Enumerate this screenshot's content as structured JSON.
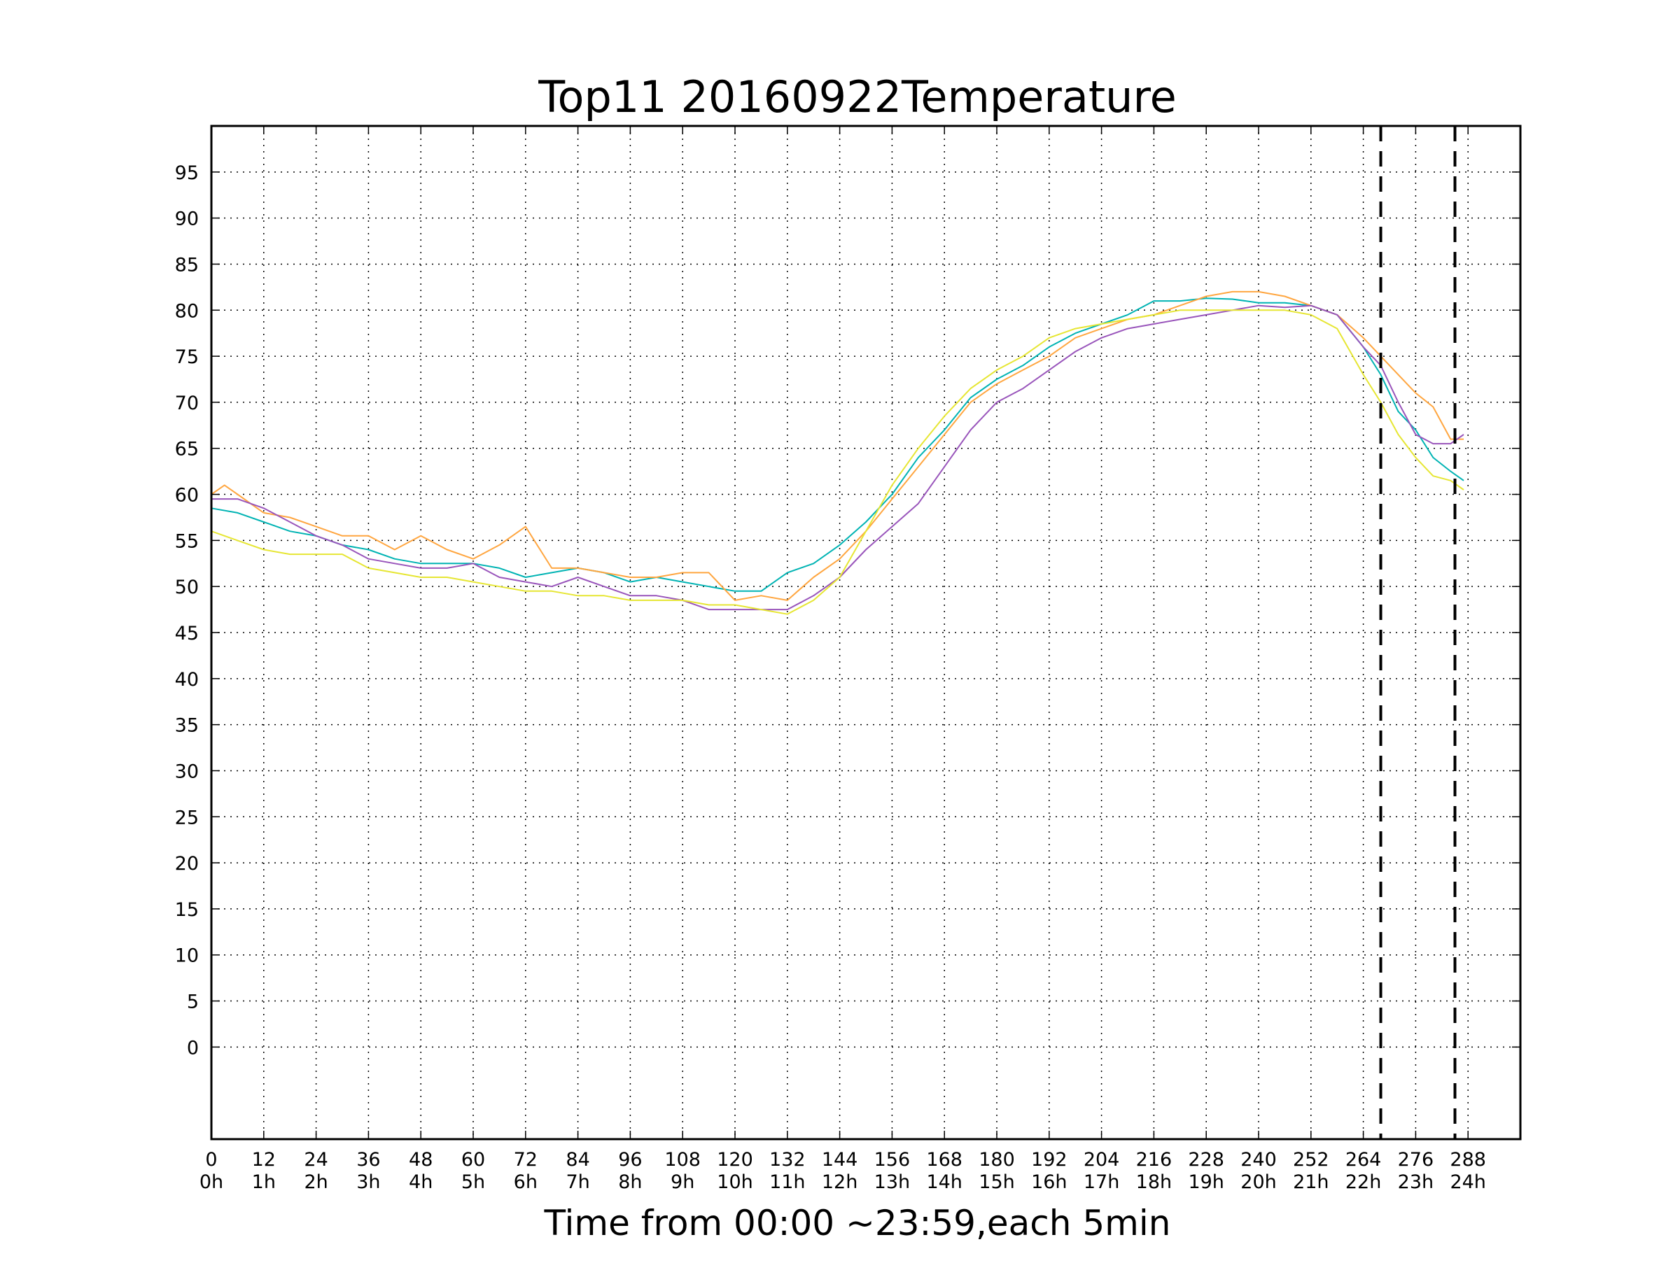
{
  "chart_data": {
    "type": "line",
    "title": "Top11 20160922Temperature",
    "xlabel": "Time from 00:00 ~23:59,each 5min",
    "ylabel": "",
    "xlim": [
      0,
      300
    ],
    "ylim": [
      -10,
      100
    ],
    "grid": true,
    "legend": "none",
    "x_ticks": [
      0,
      12,
      24,
      36,
      48,
      60,
      72,
      84,
      96,
      108,
      120,
      132,
      144,
      156,
      168,
      180,
      192,
      204,
      216,
      228,
      240,
      252,
      264,
      276,
      288
    ],
    "x_tick_labels": [
      "0",
      "12",
      "24",
      "36",
      "48",
      "60",
      "72",
      "84",
      "96",
      "108",
      "120",
      "132",
      "144",
      "156",
      "168",
      "180",
      "192",
      "204",
      "216",
      "228",
      "240",
      "252",
      "264",
      "276",
      "288"
    ],
    "x_tick_hour_labels": [
      "0h",
      "1h",
      "2h",
      "3h",
      "4h",
      "5h",
      "6h",
      "7h",
      "8h",
      "9h",
      "10h",
      "11h",
      "12h",
      "13h",
      "14h",
      "15h",
      "16h",
      "17h",
      "18h",
      "19h",
      "20h",
      "21h",
      "22h",
      "23h",
      "24h"
    ],
    "y_ticks": [
      0,
      5,
      10,
      15,
      20,
      25,
      30,
      35,
      40,
      45,
      50,
      55,
      60,
      65,
      70,
      75,
      80,
      85,
      90,
      95
    ],
    "y_tick_labels": [
      "0",
      "5",
      "10",
      "15",
      "20",
      "25",
      "30",
      "35",
      "40",
      "45",
      "50",
      "55",
      "60",
      "65",
      "70",
      "75",
      "80",
      "85",
      "90",
      "95"
    ],
    "vlines": [
      {
        "x": 268,
        "style": "dashed",
        "color": "#000000"
      },
      {
        "x": 285,
        "style": "dashed",
        "color": "#000000"
      }
    ],
    "series": [
      {
        "color": "#00b3b3",
        "points": [
          [
            0,
            58.5
          ],
          [
            6,
            58
          ],
          [
            12,
            57
          ],
          [
            18,
            56
          ],
          [
            24,
            55.5
          ],
          [
            30,
            54.5
          ],
          [
            36,
            54
          ],
          [
            42,
            53
          ],
          [
            48,
            52.5
          ],
          [
            54,
            52.5
          ],
          [
            60,
            52.5
          ],
          [
            66,
            52
          ],
          [
            72,
            51
          ],
          [
            78,
            51.5
          ],
          [
            84,
            52
          ],
          [
            90,
            51.5
          ],
          [
            96,
            50.5
          ],
          [
            102,
            51
          ],
          [
            108,
            50.5
          ],
          [
            114,
            50
          ],
          [
            120,
            49.5
          ],
          [
            126,
            49.5
          ],
          [
            132,
            51.5
          ],
          [
            138,
            52.5
          ],
          [
            144,
            54.5
          ],
          [
            150,
            57
          ],
          [
            156,
            60
          ],
          [
            162,
            64
          ],
          [
            168,
            67
          ],
          [
            174,
            70.5
          ],
          [
            180,
            72.5
          ],
          [
            186,
            74
          ],
          [
            192,
            76
          ],
          [
            198,
            77.5
          ],
          [
            204,
            78.5
          ],
          [
            210,
            79.5
          ],
          [
            216,
            81
          ],
          [
            222,
            81
          ],
          [
            228,
            81.3
          ],
          [
            234,
            81.2
          ],
          [
            240,
            80.8
          ],
          [
            246,
            80.8
          ],
          [
            252,
            80.5
          ],
          [
            258,
            79.5
          ],
          [
            264,
            76
          ],
          [
            268,
            73
          ],
          [
            272,
            69
          ],
          [
            276,
            67
          ],
          [
            280,
            64
          ],
          [
            284,
            62.5
          ],
          [
            287,
            61.5
          ]
        ]
      },
      {
        "color": "#ffa640",
        "points": [
          [
            0,
            60
          ],
          [
            3,
            61
          ],
          [
            6,
            60
          ],
          [
            12,
            58
          ],
          [
            18,
            57.5
          ],
          [
            24,
            56.5
          ],
          [
            30,
            55.5
          ],
          [
            36,
            55.5
          ],
          [
            42,
            54
          ],
          [
            48,
            55.5
          ],
          [
            54,
            54
          ],
          [
            60,
            53
          ],
          [
            66,
            54.5
          ],
          [
            72,
            56.5
          ],
          [
            78,
            52
          ],
          [
            84,
            52
          ],
          [
            90,
            51.5
          ],
          [
            96,
            51
          ],
          [
            102,
            51
          ],
          [
            108,
            51.5
          ],
          [
            114,
            51.5
          ],
          [
            120,
            48.5
          ],
          [
            126,
            49
          ],
          [
            132,
            48.5
          ],
          [
            138,
            51
          ],
          [
            144,
            53
          ],
          [
            150,
            56
          ],
          [
            156,
            59.5
          ],
          [
            162,
            63
          ],
          [
            168,
            66.5
          ],
          [
            174,
            70
          ],
          [
            180,
            72
          ],
          [
            186,
            73.5
          ],
          [
            192,
            75
          ],
          [
            198,
            77
          ],
          [
            204,
            78
          ],
          [
            210,
            79
          ],
          [
            216,
            79.5
          ],
          [
            222,
            80.5
          ],
          [
            228,
            81.5
          ],
          [
            234,
            82
          ],
          [
            240,
            82
          ],
          [
            246,
            81.5
          ],
          [
            252,
            80.5
          ],
          [
            258,
            79.5
          ],
          [
            264,
            77
          ],
          [
            268,
            75
          ],
          [
            272,
            73
          ],
          [
            276,
            71
          ],
          [
            280,
            69.5
          ],
          [
            284,
            66
          ],
          [
            287,
            66
          ]
        ]
      },
      {
        "color": "#9955bb",
        "points": [
          [
            0,
            59.5
          ],
          [
            6,
            59.5
          ],
          [
            12,
            58.5
          ],
          [
            18,
            57
          ],
          [
            24,
            55.5
          ],
          [
            30,
            54.5
          ],
          [
            36,
            53
          ],
          [
            42,
            52.5
          ],
          [
            48,
            52
          ],
          [
            54,
            52
          ],
          [
            60,
            52.5
          ],
          [
            66,
            51
          ],
          [
            72,
            50.5
          ],
          [
            78,
            50
          ],
          [
            84,
            51
          ],
          [
            90,
            50
          ],
          [
            96,
            49
          ],
          [
            102,
            49
          ],
          [
            108,
            48.5
          ],
          [
            114,
            47.5
          ],
          [
            120,
            47.5
          ],
          [
            126,
            47.5
          ],
          [
            132,
            47.5
          ],
          [
            138,
            49
          ],
          [
            144,
            51
          ],
          [
            150,
            54
          ],
          [
            156,
            56.5
          ],
          [
            162,
            59
          ],
          [
            168,
            63
          ],
          [
            174,
            67
          ],
          [
            180,
            70
          ],
          [
            186,
            71.5
          ],
          [
            192,
            73.5
          ],
          [
            198,
            75.5
          ],
          [
            204,
            77
          ],
          [
            210,
            78
          ],
          [
            216,
            78.5
          ],
          [
            222,
            79
          ],
          [
            228,
            79.5
          ],
          [
            234,
            80
          ],
          [
            240,
            80.5
          ],
          [
            246,
            80.3
          ],
          [
            252,
            80.5
          ],
          [
            258,
            79.5
          ],
          [
            264,
            76
          ],
          [
            268,
            74
          ],
          [
            272,
            70
          ],
          [
            276,
            66.5
          ],
          [
            280,
            65.5
          ],
          [
            284,
            65.5
          ],
          [
            287,
            66.5
          ]
        ]
      },
      {
        "color": "#e6e633",
        "points": [
          [
            0,
            56
          ],
          [
            3,
            55.5
          ],
          [
            6,
            55
          ],
          [
            12,
            54
          ],
          [
            18,
            53.5
          ],
          [
            24,
            53.5
          ],
          [
            30,
            53.5
          ],
          [
            36,
            52
          ],
          [
            42,
            51.5
          ],
          [
            48,
            51
          ],
          [
            54,
            51
          ],
          [
            60,
            50.5
          ],
          [
            66,
            50
          ],
          [
            72,
            49.5
          ],
          [
            78,
            49.5
          ],
          [
            84,
            49
          ],
          [
            90,
            49
          ],
          [
            96,
            48.5
          ],
          [
            102,
            48.5
          ],
          [
            108,
            48.5
          ],
          [
            114,
            48
          ],
          [
            120,
            48
          ],
          [
            126,
            47.5
          ],
          [
            132,
            47
          ],
          [
            138,
            48.5
          ],
          [
            144,
            51
          ],
          [
            150,
            56
          ],
          [
            156,
            61
          ],
          [
            162,
            65
          ],
          [
            168,
            68.5
          ],
          [
            174,
            71.5
          ],
          [
            180,
            73.5
          ],
          [
            186,
            75
          ],
          [
            192,
            77
          ],
          [
            198,
            78
          ],
          [
            204,
            78.5
          ],
          [
            210,
            79
          ],
          [
            216,
            79.5
          ],
          [
            222,
            80
          ],
          [
            228,
            80
          ],
          [
            234,
            80
          ],
          [
            240,
            80
          ],
          [
            246,
            80
          ],
          [
            252,
            79.5
          ],
          [
            258,
            78
          ],
          [
            264,
            73
          ],
          [
            268,
            70
          ],
          [
            272,
            66.5
          ],
          [
            276,
            64
          ],
          [
            280,
            62
          ],
          [
            284,
            61.5
          ],
          [
            287,
            60.5
          ]
        ]
      }
    ]
  }
}
